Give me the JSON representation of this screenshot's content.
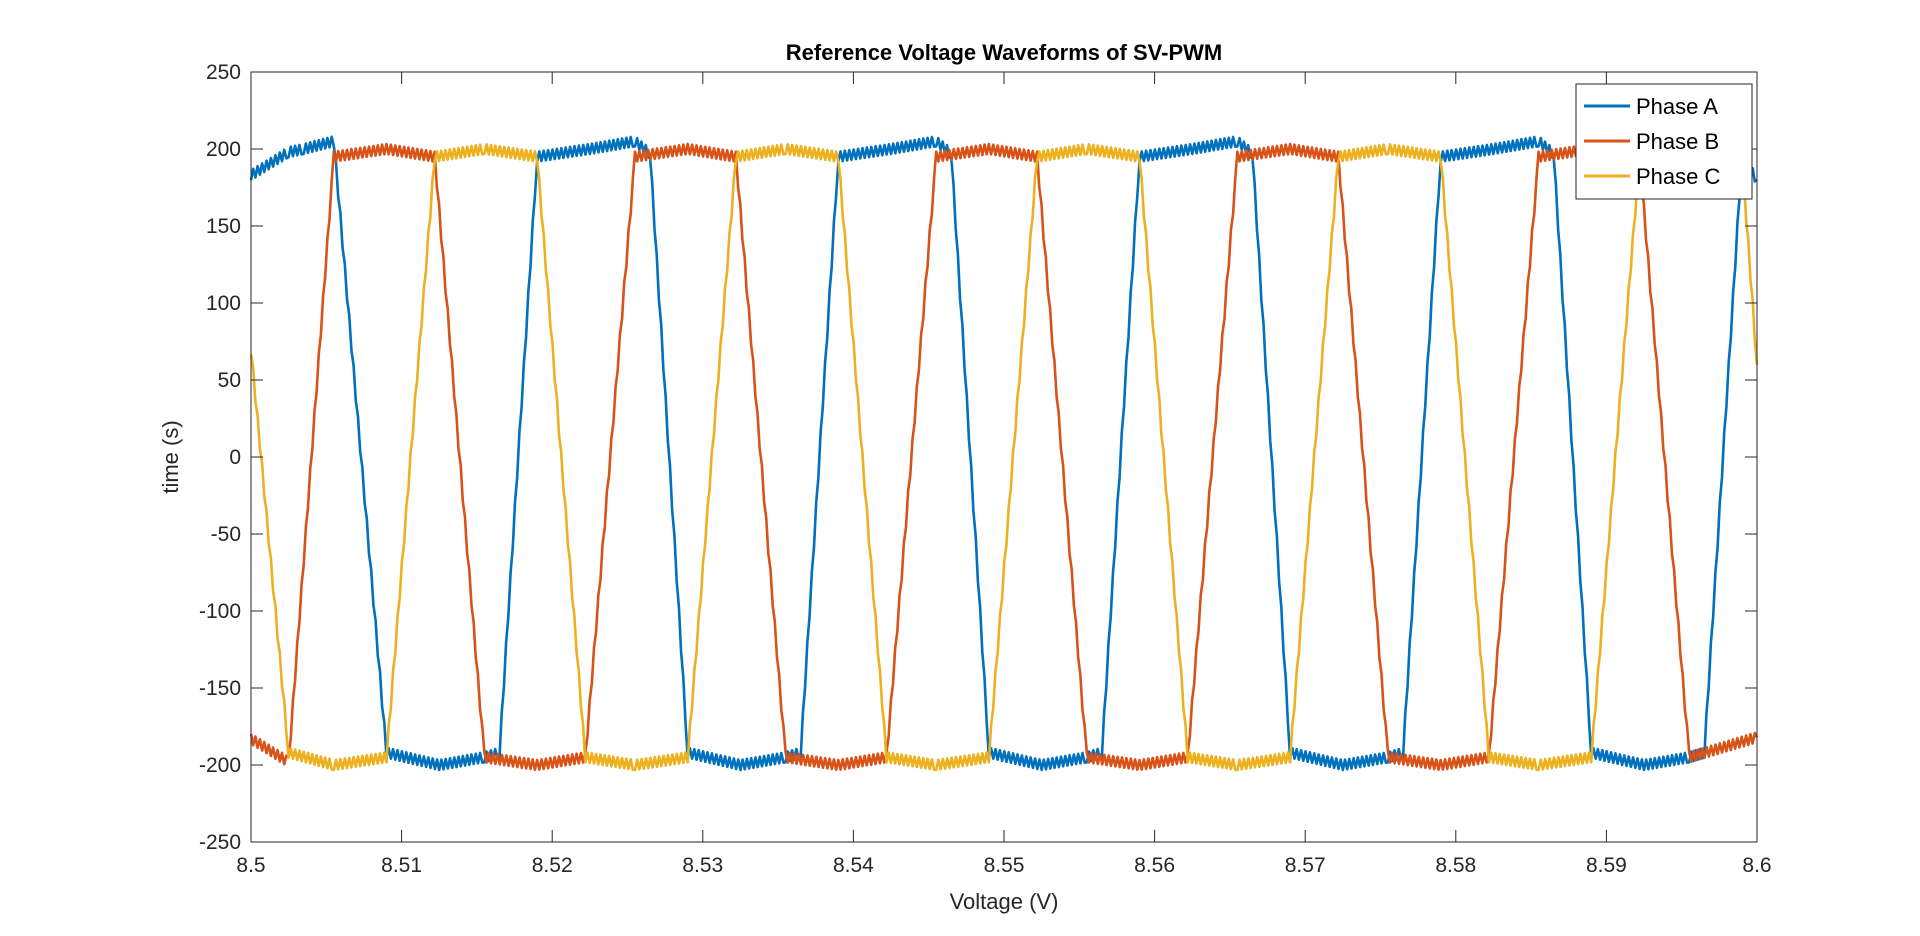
{
  "chart_data": {
    "type": "line",
    "title": "Reference Voltage Waveforms of SV-PWM",
    "xlabel": "Voltage (V)",
    "ylabel": "time (s)",
    "xlim": [
      8.5,
      8.6
    ],
    "ylim": [
      -250,
      250
    ],
    "x_ticks": [
      8.5,
      8.51,
      8.52,
      8.53,
      8.54,
      8.55,
      8.56,
      8.57,
      8.58,
      8.59,
      8.6
    ],
    "x_tick_labels": [
      "8.5",
      "8.51",
      "8.52",
      "8.53",
      "8.54",
      "8.55",
      "8.56",
      "8.57",
      "8.58",
      "8.59",
      "8.6"
    ],
    "y_ticks": [
      250,
      200,
      150,
      100,
      50,
      0,
      -50,
      -100,
      -150,
      -200,
      -250
    ],
    "y_tick_labels": [
      "250",
      "200",
      "150",
      "100",
      "50",
      "0",
      "-50",
      "-100",
      "-150",
      "-200",
      "-250"
    ],
    "grid": false,
    "legend_position": "top-right",
    "series": [
      {
        "name": "Phase A",
        "color": "#0072BD",
        "x": [
          8.5,
          8.5025,
          8.5035,
          8.5055,
          8.509,
          8.5125,
          8.5155,
          8.5165,
          8.519,
          8.5225,
          8.5255,
          8.5265,
          8.529,
          8.5325,
          8.5355,
          8.5365,
          8.539,
          8.5425,
          8.5455,
          8.5465,
          8.549,
          8.5525,
          8.5555,
          8.5565,
          8.559,
          8.5625,
          8.5655,
          8.5665,
          8.569,
          8.5725,
          8.5755,
          8.5765,
          8.579,
          8.5825,
          8.5855,
          8.5865,
          8.589,
          8.5925,
          8.5955,
          8.5965,
          8.599,
          8.6
        ],
        "y": [
          183,
          198,
          200,
          205,
          -192,
          -200,
          -195,
          -192,
          195,
          200,
          205,
          197,
          -192,
          -200,
          -195,
          -192,
          195,
          200,
          205,
          197,
          -192,
          -200,
          -195,
          -192,
          195,
          200,
          205,
          197,
          -192,
          -200,
          -195,
          -192,
          195,
          200,
          205,
          197,
          -192,
          -200,
          -195,
          -192,
          195,
          180
        ]
      },
      {
        "name": "Phase B",
        "color": "#D95319",
        "x": [
          8.5,
          8.5025,
          8.5055,
          8.509,
          8.5122,
          8.5155,
          8.519,
          8.5222,
          8.5255,
          8.529,
          8.5322,
          8.5355,
          8.539,
          8.5422,
          8.5455,
          8.549,
          8.5522,
          8.5555,
          8.559,
          8.5622,
          8.5655,
          8.569,
          8.5722,
          8.5755,
          8.579,
          8.5822,
          8.5855,
          8.589,
          8.5922,
          8.5955,
          8.6
        ],
        "y": [
          -183,
          -198,
          195,
          200,
          195,
          -195,
          -200,
          -195,
          195,
          200,
          195,
          -195,
          -200,
          -195,
          195,
          200,
          195,
          -195,
          -200,
          -195,
          195,
          200,
          195,
          -195,
          -200,
          -195,
          195,
          200,
          195,
          -195,
          -182
        ]
      },
      {
        "name": "Phase C",
        "color": "#EDB120",
        "x": [
          8.5,
          8.5025,
          8.5055,
          8.509,
          8.5122,
          8.5155,
          8.519,
          8.5222,
          8.5255,
          8.529,
          8.5322,
          8.5355,
          8.539,
          8.5422,
          8.5455,
          8.549,
          8.5522,
          8.5555,
          8.559,
          8.5622,
          8.5655,
          8.569,
          8.5722,
          8.5755,
          8.579,
          8.5822,
          8.5855,
          8.589,
          8.5922,
          8.5955,
          8.599,
          8.6
        ],
        "y": [
          70,
          -192,
          -200,
          -195,
          195,
          200,
          195,
          -195,
          -200,
          -195,
          195,
          200,
          195,
          -195,
          -200,
          -195,
          195,
          200,
          195,
          -195,
          -200,
          -195,
          195,
          200,
          195,
          -195,
          -200,
          -195,
          195,
          200,
          195,
          60
        ]
      }
    ]
  }
}
